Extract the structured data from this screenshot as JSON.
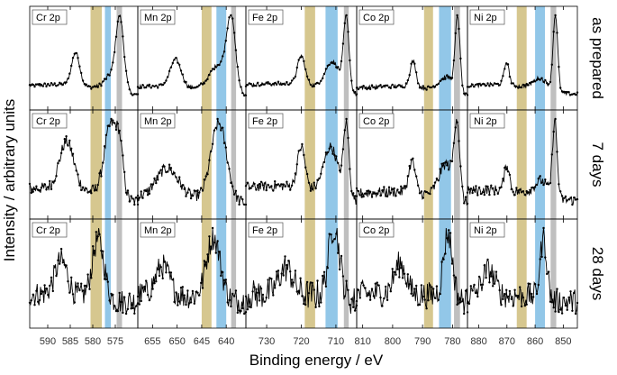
{
  "chart_data": {
    "type": "line",
    "title": "",
    "ylabel": "Intensity / arbitrary units",
    "xlabel": "Binding energy / eV",
    "band_colors": {
      "olive": "#c8b46a",
      "blue": "#6eb4e0",
      "grey": "#aaaaaa"
    },
    "line_color": "#000000",
    "conditions": [
      "as prepared",
      "7 days",
      "28 days"
    ],
    "panels": [
      {
        "element": "Cr 2p",
        "xlim": [
          594,
          570
        ],
        "ticks": [
          590,
          585,
          580,
          575
        ],
        "tick_labels": [
          "590",
          "585",
          "580",
          "575"
        ],
        "bands": [
          {
            "color": "olive",
            "range": [
              580.5,
              578.0
            ]
          },
          {
            "color": "blue",
            "range": [
              577.3,
              576.0
            ]
          },
          {
            "color": "grey",
            "range": [
              574.7,
              573.5
            ]
          }
        ],
        "peaks": {
          "as prepared": [
            {
              "c": 583.8,
              "w": 0.9,
              "h": 0.45
            },
            {
              "c": 574.0,
              "w": 0.9,
              "h": 1.0
            },
            {
              "c": 576.3,
              "w": 1.2,
              "h": 0.15
            }
          ],
          "7 days": [
            {
              "c": 585.8,
              "w": 1.6,
              "h": 0.55
            },
            {
              "c": 576.0,
              "w": 1.4,
              "h": 0.8
            },
            {
              "c": 574.0,
              "w": 0.8,
              "h": 0.45
            }
          ],
          "28 days": [
            {
              "c": 587.0,
              "w": 1.4,
              "h": 0.55
            },
            {
              "c": 578.8,
              "w": 1.3,
              "h": 0.95
            }
          ]
        }
      },
      {
        "element": "Mn 2p",
        "xlim": [
          658,
          636
        ],
        "ticks": [
          655,
          650,
          645,
          640
        ],
        "tick_labels": [
          "655",
          "650",
          "645",
          "640"
        ],
        "bands": [
          {
            "color": "olive",
            "range": [
              645.0,
              643.0
            ]
          },
          {
            "color": "blue",
            "range": [
              642.0,
              640.0
            ]
          },
          {
            "color": "grey",
            "range": [
              639.0,
              638.0
            ]
          }
        ],
        "peaks": {
          "as prepared": [
            {
              "c": 650.3,
              "w": 1.1,
              "h": 0.4
            },
            {
              "c": 639.0,
              "w": 0.9,
              "h": 1.0
            },
            {
              "c": 641.5,
              "w": 1.8,
              "h": 0.35
            }
          ],
          "7 days": [
            {
              "c": 652.0,
              "w": 2.2,
              "h": 0.35
            },
            {
              "c": 641.5,
              "w": 1.6,
              "h": 0.95
            }
          ],
          "28 days": [
            {
              "c": 653.0,
              "w": 1.4,
              "h": 0.45
            },
            {
              "c": 642.6,
              "w": 1.4,
              "h": 0.95
            }
          ]
        }
      },
      {
        "element": "Fe 2p",
        "xlim": [
          736,
          704
        ],
        "ticks": [
          730,
          720,
          710
        ],
        "tick_labels": [
          "730",
          "720",
          "710"
        ],
        "bands": [
          {
            "color": "olive",
            "range": [
              719.0,
              716.0
            ]
          },
          {
            "color": "blue",
            "range": [
              713.0,
              709.5
            ]
          },
          {
            "color": "grey",
            "range": [
              707.7,
              706.3
            ]
          }
        ],
        "peaks": {
          "as prepared": [
            {
              "c": 720.0,
              "w": 1.1,
              "h": 0.4
            },
            {
              "c": 707.0,
              "w": 0.8,
              "h": 1.0
            },
            {
              "c": 711.0,
              "w": 2.0,
              "h": 0.35
            }
          ],
          "7 days": [
            {
              "c": 720.0,
              "w": 1.1,
              "h": 0.55
            },
            {
              "c": 707.0,
              "w": 0.8,
              "h": 0.95
            },
            {
              "c": 711.5,
              "w": 2.0,
              "h": 0.6
            }
          ],
          "28 days": [
            {
              "c": 724.5,
              "w": 2.0,
              "h": 0.35
            },
            {
              "c": 710.5,
              "w": 1.6,
              "h": 0.95
            }
          ]
        }
      },
      {
        "element": "Co 2p",
        "xlim": [
          812,
          775
        ],
        "ticks": [
          810,
          800,
          790,
          780
        ],
        "tick_labels": [
          "810",
          "800",
          "790",
          "780"
        ],
        "bands": [
          {
            "color": "olive",
            "range": [
              789.5,
              786.5
            ]
          },
          {
            "color": "blue",
            "range": [
              784.5,
              780.5
            ]
          },
          {
            "color": "grey",
            "range": [
              779.5,
              777.5
            ]
          }
        ],
        "peaks": {
          "as prepared": [
            {
              "c": 793.2,
              "w": 1.0,
              "h": 0.35
            },
            {
              "c": 778.3,
              "w": 0.8,
              "h": 1.0
            },
            {
              "c": 782.0,
              "w": 2.2,
              "h": 0.15
            }
          ],
          "7 days": [
            {
              "c": 793.5,
              "w": 1.1,
              "h": 0.4
            },
            {
              "c": 778.5,
              "w": 0.9,
              "h": 0.9
            },
            {
              "c": 782.0,
              "w": 2.4,
              "h": 0.4
            }
          ],
          "28 days": [
            {
              "c": 797.5,
              "w": 2.0,
              "h": 0.45
            },
            {
              "c": 781.5,
              "w": 1.5,
              "h": 0.95
            }
          ]
        }
      },
      {
        "element": "Ni 2p",
        "xlim": [
          884,
          845
        ],
        "ticks": [
          880,
          870,
          860,
          850
        ],
        "tick_labels": [
          "880",
          "870",
          "860",
          "850"
        ],
        "bands": [
          {
            "color": "olive",
            "range": [
              866.5,
              863.0
            ]
          },
          {
            "color": "blue",
            "range": [
              860.0,
              856.5
            ]
          },
          {
            "color": "grey",
            "range": [
              854.5,
              852.5
            ]
          }
        ],
        "peaks": {
          "as prepared": [
            {
              "c": 870.1,
              "w": 0.9,
              "h": 0.3
            },
            {
              "c": 852.8,
              "w": 0.8,
              "h": 1.0
            },
            {
              "c": 858.5,
              "w": 2.0,
              "h": 0.1
            }
          ],
          "7 days": [
            {
              "c": 870.0,
              "w": 0.9,
              "h": 0.35
            },
            {
              "c": 853.0,
              "w": 0.8,
              "h": 1.0
            },
            {
              "c": 858.0,
              "w": 2.0,
              "h": 0.15
            }
          ],
          "28 days": [
            {
              "c": 876.5,
              "w": 2.2,
              "h": 0.4
            },
            {
              "c": 857.0,
              "w": 1.2,
              "h": 0.95
            }
          ]
        }
      }
    ]
  }
}
